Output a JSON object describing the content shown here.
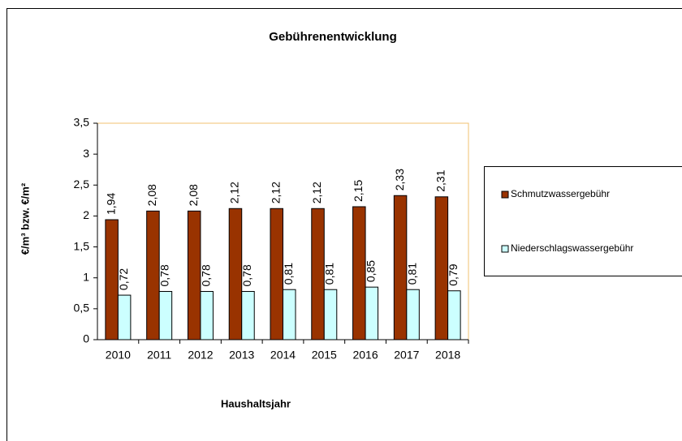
{
  "chart_data": {
    "type": "bar",
    "title": "Gebührenentwicklung",
    "x_label": "Haushaltsjahr",
    "y_label": "€/m³ bzw. €/m²",
    "categories": [
      "2010",
      "2011",
      "2012",
      "2013",
      "2014",
      "2015",
      "2016",
      "2017",
      "2018"
    ],
    "series": [
      {
        "name": "Schmutzwassergebühr",
        "color": "#993300",
        "values": [
          1.94,
          2.08,
          2.08,
          2.12,
          2.12,
          2.12,
          2.15,
          2.33,
          2.31
        ],
        "value_labels": [
          "1,94",
          "2,08",
          "2,08",
          "2,12",
          "2,12",
          "2,12",
          "2,15",
          "2,33",
          "2,31"
        ]
      },
      {
        "name": "Niederschlagswassergebühr",
        "color": "#ccffff",
        "values": [
          0.72,
          0.78,
          0.78,
          0.78,
          0.81,
          0.81,
          0.85,
          0.81,
          0.79
        ],
        "value_labels": [
          "0,72",
          "0,78",
          "0,78",
          "0,78",
          "0,81",
          "0,81",
          "0,85",
          "0,81",
          "0,79"
        ]
      }
    ],
    "ylim": [
      0,
      3.5
    ],
    "yticks": [
      0,
      {
        "value": 0.5,
        "label": "0,5"
      },
      1,
      {
        "value": 1.5,
        "label": "1,5"
      },
      2,
      {
        "value": 2.5,
        "label": "2,5"
      },
      3,
      {
        "value": 3.5,
        "label": "3,5"
      }
    ],
    "legend": "right"
  }
}
